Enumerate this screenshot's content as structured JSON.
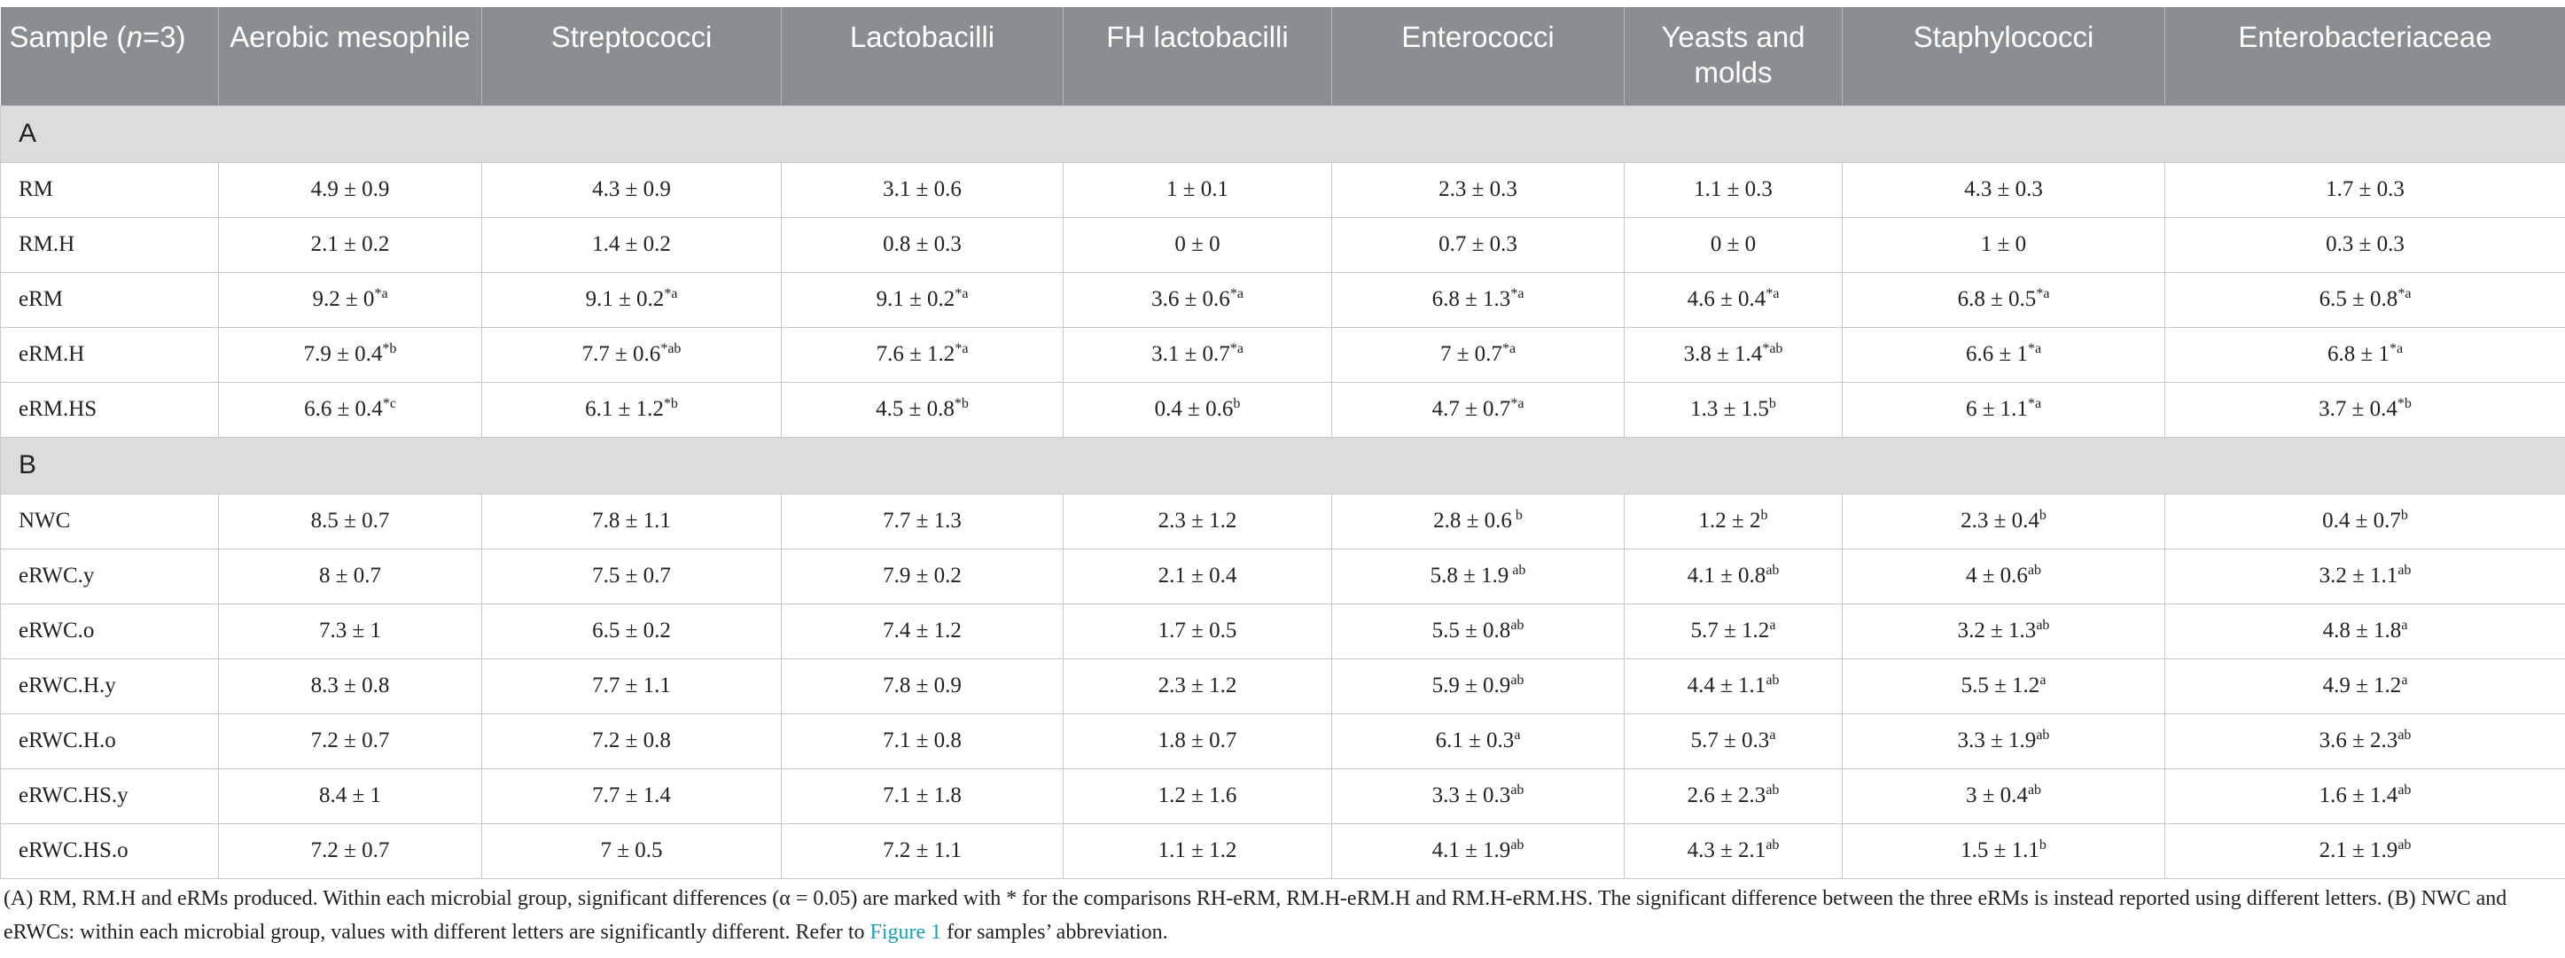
{
  "header": {
    "sample": [
      "Sample (",
      "n",
      "=3)"
    ],
    "columns": [
      "Aerobic mesophile",
      "Streptococci",
      "Lactobacilli",
      "FH lactobacilli",
      "Enterococci",
      "Yeasts and molds",
      "Staphylococci",
      "Enterobacteriaceae"
    ]
  },
  "sections": [
    {
      "label": "A",
      "rows": [
        {
          "sample": "RM",
          "cells": [
            "4.9 ± 0.9",
            "4.3 ± 0.9",
            "3.1 ± 0.6",
            "1 ± 0.1",
            "2.3 ± 0.3",
            "1.1 ± 0.3",
            "4.3 ± 0.3",
            "1.7 ± 0.3"
          ]
        },
        {
          "sample": "RM.H",
          "cells": [
            "2.1 ± 0.2",
            "1.4 ± 0.2",
            "0.8 ± 0.3",
            "0 ± 0",
            "0.7 ± 0.3",
            "0 ± 0",
            "1 ± 0",
            "0.3 ± 0.3"
          ]
        },
        {
          "sample": "eRM",
          "cells": [
            {
              "text": "9.2 ± 0",
              "sup": "*a"
            },
            {
              "text": "9.1 ± 0.2",
              "sup": "*a"
            },
            {
              "text": "9.1 ± 0.2",
              "sup": "*a"
            },
            {
              "text": "3.6 ± 0.6",
              "sup": "*a"
            },
            {
              "text": "6.8 ± 1.3",
              "sup": "*a"
            },
            {
              "text": "4.6 ± 0.4",
              "sup": "*a"
            },
            {
              "text": "6.8 ± 0.5",
              "sup": "*a"
            },
            {
              "text": "6.5 ± 0.8",
              "sup": "*a"
            }
          ]
        },
        {
          "sample": "eRM.H",
          "cells": [
            {
              "text": "7.9 ± 0.4",
              "sup": "*b"
            },
            {
              "text": "7.7 ± 0.6",
              "sup": "*ab"
            },
            {
              "text": "7.6 ± 1.2",
              "sup": "*a"
            },
            {
              "text": "3.1 ± 0.7",
              "sup": "*a"
            },
            {
              "text": "7 ± 0.7",
              "sup": "*a"
            },
            {
              "text": "3.8 ± 1.4",
              "sup": "*ab"
            },
            {
              "text": "6.6 ± 1",
              "sup": "*a"
            },
            {
              "text": "6.8 ± 1",
              "sup": "*a"
            }
          ]
        },
        {
          "sample": "eRM.HS",
          "cells": [
            {
              "text": "6.6 ± 0.4",
              "sup": "*c"
            },
            {
              "text": "6.1 ± 1.2",
              "sup": "*b"
            },
            {
              "text": "4.5 ± 0.8",
              "sup": "*b"
            },
            {
              "text": "0.4 ± 0.6",
              "sup": "b"
            },
            {
              "text": "4.7 ± 0.7",
              "sup": "*a"
            },
            {
              "text": "1.3 ± 1.5",
              "sup": "b"
            },
            {
              "text": "6 ± 1.1",
              "sup": "*a"
            },
            {
              "text": "3.7 ± 0.4",
              "sup": "*b"
            }
          ]
        }
      ]
    },
    {
      "label": "B",
      "rows": [
        {
          "sample": "NWC",
          "cells": [
            "8.5 ± 0.7",
            "7.8 ± 1.1",
            "7.7 ± 1.3",
            "2.3 ± 1.2",
            {
              "text": "2.8 ± 0.6",
              "sup": " b"
            },
            {
              "text": "1.2 ± 2",
              "sup": "b"
            },
            {
              "text": "2.3 ± 0.4",
              "sup": "b"
            },
            {
              "text": "0.4 ± 0.7",
              "sup": "b"
            }
          ]
        },
        {
          "sample": "eRWC.y",
          "cells": [
            "8 ± 0.7",
            "7.5 ± 0.7",
            "7.9 ± 0.2",
            "2.1 ± 0.4",
            {
              "text": "5.8 ± 1.9",
              "sup": " ab"
            },
            {
              "text": "4.1 ± 0.8",
              "sup": "ab"
            },
            {
              "text": "4 ± 0.6",
              "sup": "ab"
            },
            {
              "text": "3.2 ± 1.1",
              "sup": "ab"
            }
          ]
        },
        {
          "sample": "eRWC.o",
          "cells": [
            "7.3 ± 1",
            "6.5 ± 0.2",
            "7.4 ± 1.2",
            "1.7 ± 0.5",
            {
              "text": "5.5 ± 0.8",
              "sup": "ab"
            },
            {
              "text": "5.7 ± 1.2",
              "sup": "a"
            },
            {
              "text": "3.2 ± 1.3",
              "sup": "ab"
            },
            {
              "text": "4.8 ± 1.8",
              "sup": "a"
            }
          ]
        },
        {
          "sample": "eRWC.H.y",
          "cells": [
            "8.3 ± 0.8",
            "7.7 ± 1.1",
            "7.8 ± 0.9",
            "2.3 ± 1.2",
            {
              "text": "5.9 ± 0.9",
              "sup": "ab"
            },
            {
              "text": "4.4 ± 1.1",
              "sup": "ab"
            },
            {
              "text": "5.5 ± 1.2",
              "sup": "a"
            },
            {
              "text": "4.9 ± 1.2",
              "sup": "a"
            }
          ]
        },
        {
          "sample": "eRWC.H.o",
          "cells": [
            "7.2 ± 0.7",
            "7.2 ± 0.8",
            "7.1 ± 0.8",
            "1.8 ± 0.7",
            {
              "text": "6.1 ± 0.3",
              "sup": "a"
            },
            {
              "text": "5.7 ± 0.3",
              "sup": "a"
            },
            {
              "text": "3.3 ± 1.9",
              "sup": "ab"
            },
            {
              "text": "3.6 ± 2.3",
              "sup": "ab"
            }
          ]
        },
        {
          "sample": "eRWC.HS.y",
          "cells": [
            "8.4 ± 1",
            "7.7 ± 1.4",
            "7.1 ± 1.8",
            "1.2 ± 1.6",
            {
              "text": "3.3 ± 0.3",
              "sup": "ab"
            },
            {
              "text": "2.6 ± 2.3",
              "sup": "ab"
            },
            {
              "text": "3 ± 0.4",
              "sup": "ab"
            },
            {
              "text": "1.6 ± 1.4",
              "sup": "ab"
            }
          ]
        },
        {
          "sample": "eRWC.HS.o",
          "cells": [
            "7.2 ± 0.7",
            "7 ± 0.5",
            "7.2 ± 1.1",
            "1.1 ± 1.2",
            {
              "text": "4.1 ± 1.9",
              "sup": "ab"
            },
            {
              "text": "4.3 ± 2.1",
              "sup": "ab"
            },
            {
              "text": "1.5 ± 1.1",
              "sup": "b"
            },
            {
              "text": "2.1 ± 1.9",
              "sup": "ab"
            }
          ]
        }
      ]
    }
  ],
  "footnote": [
    "(A) RM, RM.H and eRMs produced. Within each microbial group, significant differences (α = 0.05) are marked with * for the comparisons RH-eRM, RM.H-eRM.H and RM.H-eRM.HS. The significant difference between the three eRMs is instead reported using different letters. (B) NWC and eRWCs: within each microbial group, values with different letters are significantly different. Refer to ",
    "Figure 1",
    " for samples’ abbreviation."
  ]
}
